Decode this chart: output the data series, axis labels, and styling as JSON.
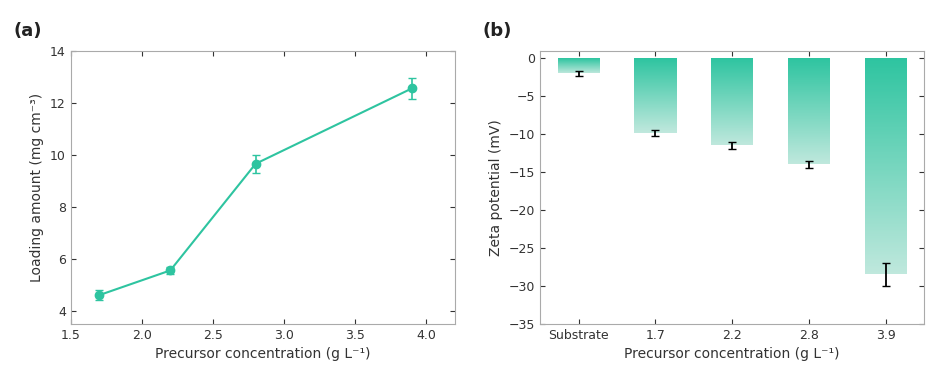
{
  "panel_a": {
    "x": [
      1.7,
      2.2,
      2.8,
      3.9
    ],
    "y": [
      4.6,
      5.55,
      9.65,
      12.55
    ],
    "yerr": [
      0.2,
      0.15,
      0.35,
      0.4
    ],
    "xlabel": "Precursor concentration (g L⁻¹)",
    "ylabel": "Loading amount (mg cm⁻³)",
    "xlim": [
      1.5,
      4.2
    ],
    "ylim": [
      3.5,
      14
    ],
    "yticks": [
      4,
      6,
      8,
      10,
      12,
      14
    ],
    "xticks": [
      1.5,
      2.0,
      2.5,
      3.0,
      3.5,
      4.0
    ],
    "color": "#2ec4a0",
    "label": "(a)"
  },
  "panel_b": {
    "categories": [
      "Substrate",
      "1.7",
      "2.2",
      "2.8",
      "3.9"
    ],
    "values": [
      -2.0,
      -9.8,
      -11.5,
      -14.0,
      -28.5
    ],
    "yerr": [
      0.3,
      0.4,
      0.5,
      0.5,
      1.5
    ],
    "xlabel": "Precursor concentration (g L⁻¹)",
    "ylabel": "Zeta potential (mV)",
    "ylim": [
      -35,
      1
    ],
    "yticks": [
      0,
      -5,
      -10,
      -15,
      -20,
      -25,
      -30,
      -35
    ],
    "color_top": "#2ec4a0",
    "color_bottom": "#c0e8dd",
    "label": "(b)"
  },
  "figure_bg": "#ffffff",
  "axes_bg": "#ffffff"
}
